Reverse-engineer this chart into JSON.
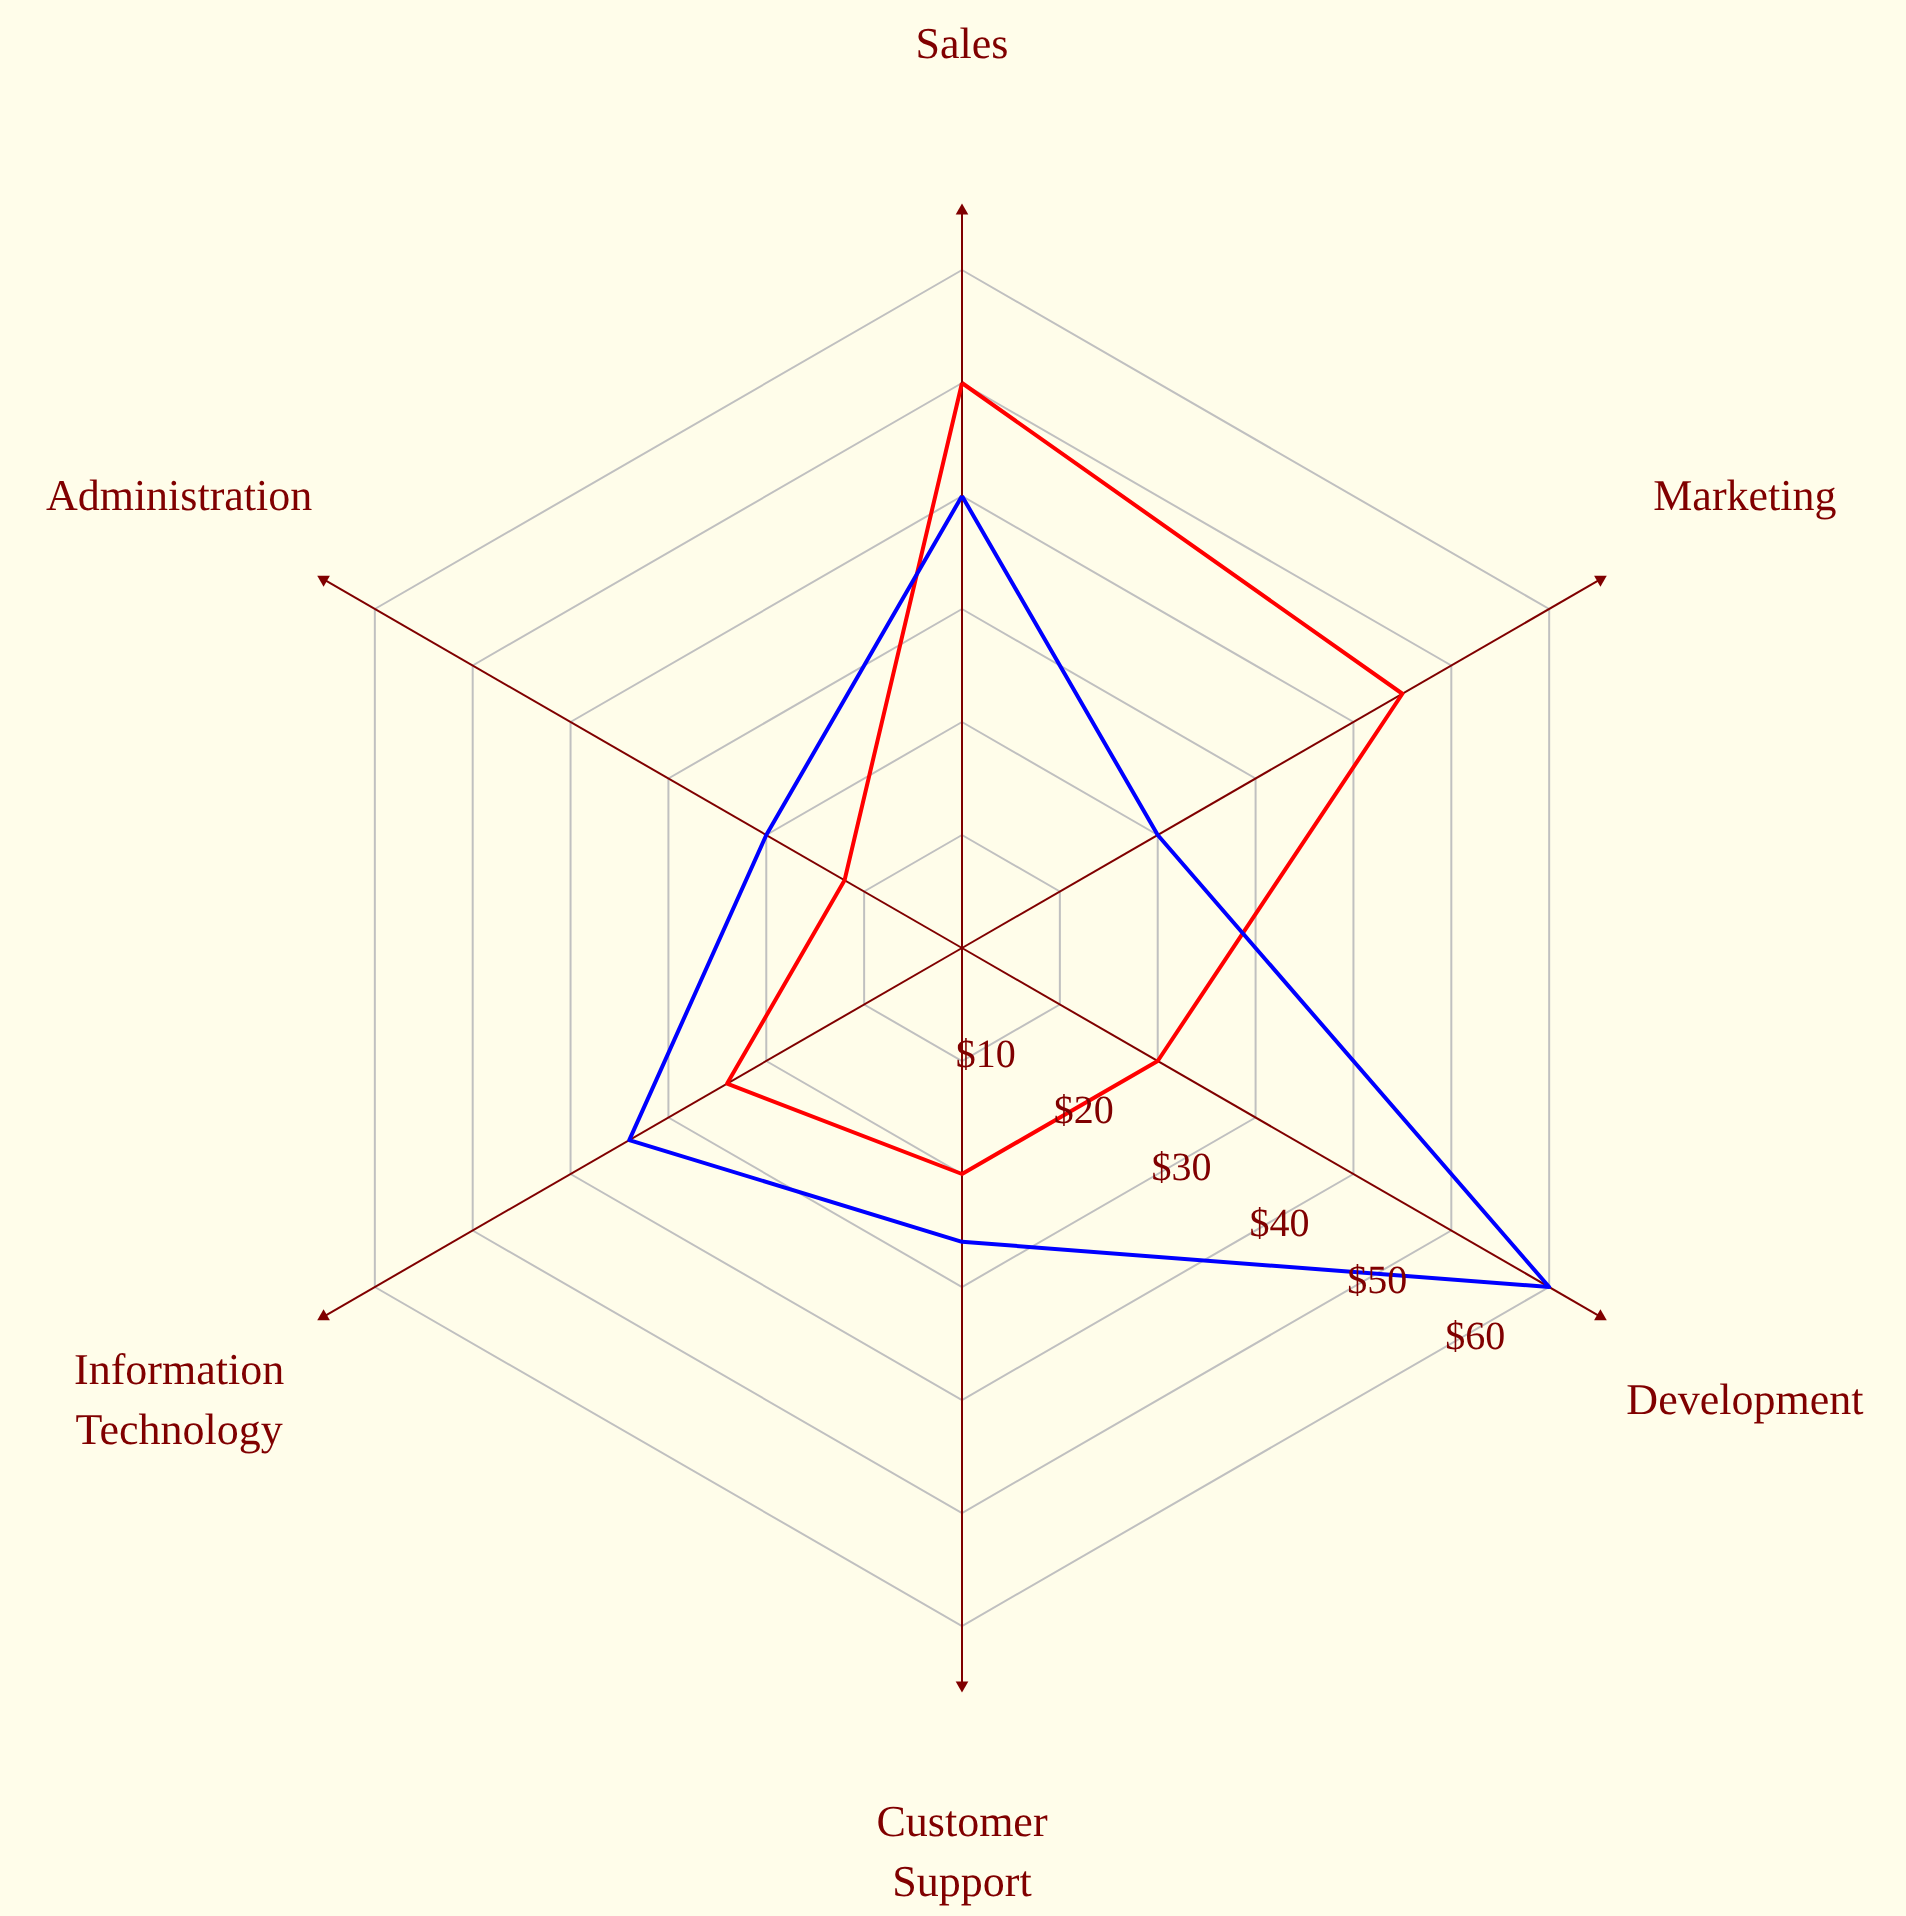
{
  "chart_data": {
    "type": "radar",
    "categories": [
      "Sales",
      "Marketing",
      "Development",
      "Customer Support",
      "Information Technology",
      "Administration"
    ],
    "series": [
      {
        "color": "#ff0000",
        "values": [
          50,
          45,
          20,
          20,
          24,
          12
        ]
      },
      {
        "color": "#0000ff",
        "values": [
          40,
          20,
          60,
          26,
          34,
          20
        ]
      }
    ],
    "ylim": [
      0,
      60
    ],
    "yticks": [
      {
        "value": 10,
        "label": "$10"
      },
      {
        "value": 20,
        "label": "$20"
      },
      {
        "value": 30,
        "label": "$30"
      },
      {
        "value": 40,
        "label": "$40"
      },
      {
        "value": 50,
        "label": "$50"
      },
      {
        "value": 60,
        "label": "$60"
      }
    ],
    "grid": true
  }
}
